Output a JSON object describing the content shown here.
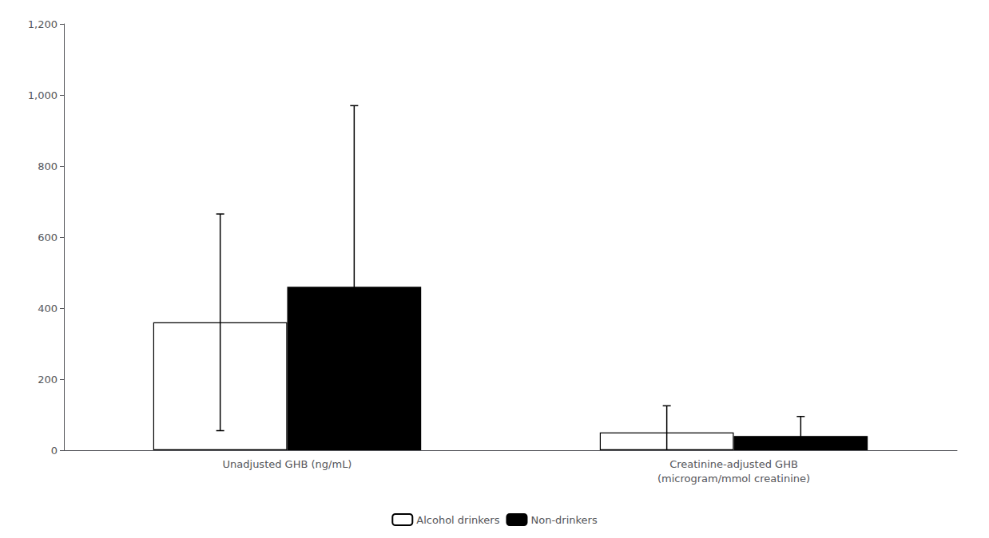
{
  "chart_data": {
    "type": "bar",
    "categories": [
      "Unadjusted GHB (ng/mL)",
      "Creatinine-adjusted GHB\n(microgram/mmol creatinine)"
    ],
    "series": [
      {
        "name": "Alcohol drinkers",
        "color": "#ffffff",
        "values": [
          360,
          50
        ],
        "errors": [
          305,
          75
        ]
      },
      {
        "name": "Non-drinkers",
        "color": "#000000",
        "values": [
          460,
          40
        ],
        "errors": [
          510,
          55
        ]
      }
    ],
    "ylim": [
      0,
      1200
    ],
    "yticks": [
      0,
      200,
      400,
      600,
      800,
      1000,
      1200
    ],
    "grid": false,
    "legend": "bottom"
  }
}
